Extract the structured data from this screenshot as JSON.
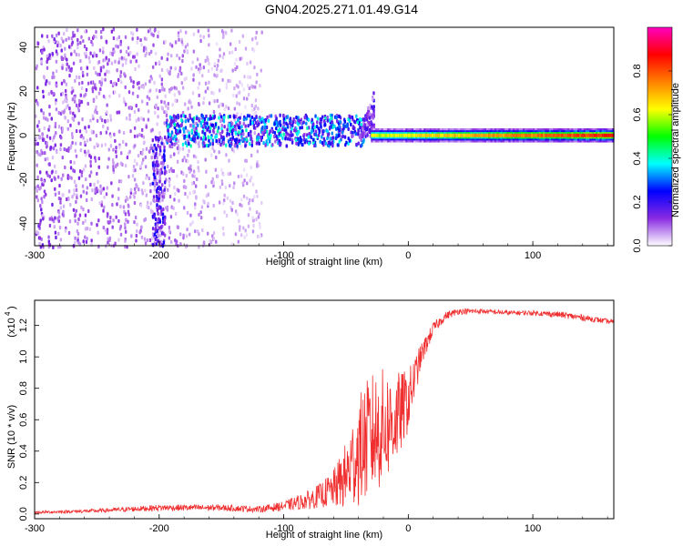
{
  "chart_data": [
    {
      "type": "heatmap",
      "title": "GN04.2025.271.01.49.G14",
      "xlabel": "Height of straight line (km)",
      "ylabel": "Frequency (Hz)",
      "xlim": [
        -300,
        165
      ],
      "ylim": [
        -50,
        49
      ],
      "xticks": [
        -300,
        -200,
        -100,
        0,
        100
      ],
      "yticks": [
        -40,
        -20,
        0,
        20,
        40
      ],
      "colorbar": {
        "label": "Normalized spectral amplitude",
        "range": [
          0,
          1
        ],
        "ticks": [
          "0.0",
          "0.2",
          "0.4",
          "0.6",
          "0.8"
        ],
        "colormap": [
          "#ffffff",
          "#8a2be2",
          "#0000ff",
          "#00ffff",
          "#00ff00",
          "#ffff00",
          "#ff8000",
          "#ff0000",
          "#ff00c0"
        ]
      },
      "features": [
        {
          "name": "noise-region",
          "x_range": [
            -300,
            -118
          ],
          "freq_range": [
            -50,
            49
          ],
          "amplitude": 0.1
        },
        {
          "name": "vertical-streak",
          "x_range": [
            -206,
            -196
          ],
          "freq_range": [
            -50,
            0
          ],
          "amplitude": 0.18
        },
        {
          "name": "scattered-signal",
          "x_range": [
            -195,
            -35
          ],
          "freq_range": [
            -4,
            10
          ],
          "amplitude": 0.3
        },
        {
          "name": "rising-tail",
          "x_range": [
            -40,
            -28
          ],
          "freq_range": [
            0,
            24
          ],
          "amplitude": 0.15
        },
        {
          "name": "main-trace",
          "x_range": [
            -30,
            165
          ],
          "freq_center": 0,
          "amplitude": 0.85
        }
      ]
    },
    {
      "type": "line",
      "xlabel": "Height of straight line (km)",
      "ylabel": "SNR (10 * v/v)",
      "yscale_label": "(x10",
      "yscale_exponent": "4",
      "xlim": [
        -300,
        165
      ],
      "ylim": [
        -0.03,
        1.36
      ],
      "xticks": [
        -300,
        -200,
        -100,
        0,
        100
      ],
      "yticks": [
        "0.0",
        "0.2",
        "0.4",
        "0.6",
        "0.8",
        "1.0",
        "1.2"
      ],
      "line_color": "#f03030",
      "series": [
        {
          "x": [
            -300,
            -250,
            -200,
            -150,
            -120,
            -100,
            -80,
            -70,
            -60,
            -50,
            -40,
            -30,
            -20,
            -10,
            0,
            10,
            20,
            30,
            40,
            60,
            80,
            100,
            120,
            140,
            165
          ],
          "values": [
            0.01,
            0.02,
            0.04,
            0.04,
            0.03,
            0.05,
            0.09,
            0.12,
            0.16,
            0.24,
            0.4,
            0.5,
            0.55,
            0.6,
            0.72,
            1.0,
            1.18,
            1.26,
            1.29,
            1.29,
            1.28,
            1.28,
            1.27,
            1.25,
            1.22
          ],
          "noise": [
            0.008,
            0.012,
            0.02,
            0.02,
            0.02,
            0.03,
            0.06,
            0.08,
            0.12,
            0.22,
            0.35,
            0.4,
            0.38,
            0.3,
            0.2,
            0.08,
            0.04,
            0.025,
            0.02,
            0.015,
            0.015,
            0.015,
            0.02,
            0.02,
            0.015
          ]
        }
      ]
    }
  ]
}
